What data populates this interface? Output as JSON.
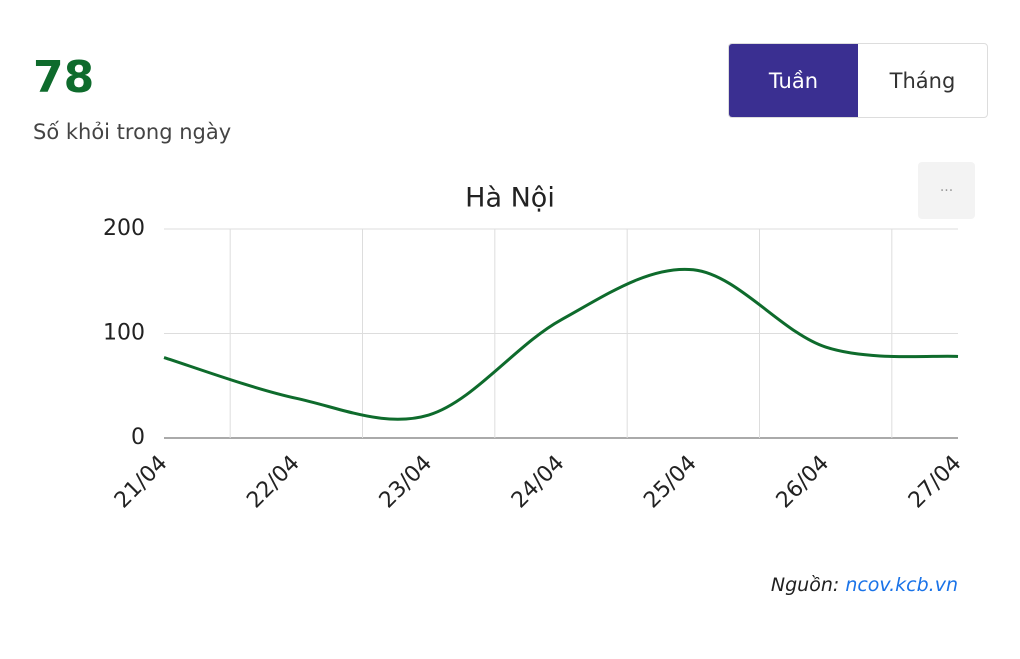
{
  "header": {
    "value": "78",
    "label": "Số khỏi trong ngày"
  },
  "tabs": [
    "Tuần",
    "Tháng"
  ],
  "menu": "···",
  "chart_data": {
    "type": "line",
    "title": "Hà Nội",
    "categories": [
      "21/04",
      "22/04",
      "23/04",
      "24/04",
      "25/04",
      "26/04",
      "27/04"
    ],
    "series": [
      {
        "name": "Số khỏi",
        "color": "#0e6b2c",
        "values": [
          77,
          38,
          22,
          113,
          161,
          87,
          78
        ]
      }
    ],
    "ylim": [
      0,
      200
    ],
    "yticks": [
      0,
      100,
      200
    ],
    "grid": true
  },
  "source": {
    "label": "Nguồn:",
    "link": "ncov.kcb.vn"
  }
}
